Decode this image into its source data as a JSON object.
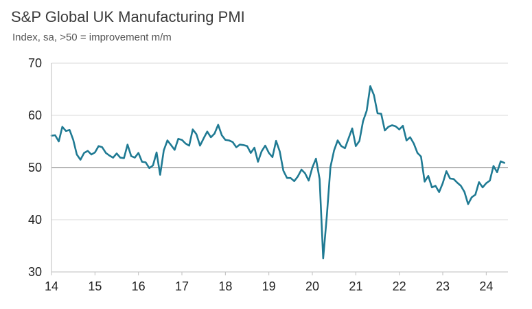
{
  "chart_data": {
    "type": "line",
    "title": "S&P Global UK Manufacturing PMI",
    "subtitle": "Index, sa, >50 = improvement m/m",
    "xlabel": "",
    "ylabel": "",
    "ylim": [
      30,
      70
    ],
    "yticks": [
      30,
      40,
      50,
      60,
      70
    ],
    "xlim": [
      2014.0,
      2024.5
    ],
    "xticks": [
      {
        "x": 2014,
        "label": "14"
      },
      {
        "x": 2015,
        "label": "15"
      },
      {
        "x": 2016,
        "label": "16"
      },
      {
        "x": 2017,
        "label": "17"
      },
      {
        "x": 2018,
        "label": "18"
      },
      {
        "x": 2019,
        "label": "19"
      },
      {
        "x": 2020,
        "label": "20"
      },
      {
        "x": 2021,
        "label": "21"
      },
      {
        "x": 2022,
        "label": "22"
      },
      {
        "x": 2023,
        "label": "23"
      },
      {
        "x": 2024,
        "label": "24"
      }
    ],
    "reference_line": 50,
    "grid": "horizontal",
    "line_color": "#1f7a93",
    "series": [
      {
        "start": "2014-01",
        "values": [
          56.1,
          56.2,
          55.0,
          57.8,
          57.0,
          57.2,
          55.3,
          52.5,
          51.5,
          52.8,
          53.2,
          52.5,
          52.9,
          54.1,
          53.9,
          52.8,
          52.3,
          51.9,
          52.7,
          51.9,
          51.8,
          54.4,
          52.2,
          51.9,
          52.8,
          51.1,
          51.0,
          49.9,
          50.4,
          52.9,
          48.6,
          53.3,
          55.2,
          54.3,
          53.4,
          55.5,
          55.3,
          54.6,
          54.2,
          57.3,
          56.4,
          54.2,
          55.6,
          56.9,
          55.8,
          56.5,
          58.2,
          56.2,
          55.3,
          55.2,
          54.9,
          53.9,
          54.4,
          54.3,
          54.1,
          52.8,
          53.8,
          51.1,
          53.1,
          54.2,
          52.8,
          52.0,
          55.1,
          53.1,
          49.4,
          48.0,
          48.0,
          47.4,
          48.3,
          49.6,
          48.9,
          47.5,
          50.0,
          51.7,
          47.8,
          32.6,
          40.7,
          50.1,
          53.3,
          55.2,
          54.1,
          53.7,
          55.6,
          57.5,
          54.1,
          55.1,
          58.9,
          60.9,
          65.6,
          63.9,
          60.4,
          60.3,
          57.1,
          57.8,
          58.1,
          57.9,
          57.3,
          58.0,
          55.2,
          55.8,
          54.6,
          52.8,
          52.1,
          47.3,
          48.4,
          46.2,
          46.5,
          45.3,
          47.0,
          49.3,
          47.9,
          47.8,
          47.1,
          46.5,
          45.3,
          43.0,
          44.3,
          44.8,
          47.2,
          46.2,
          47.0,
          47.5,
          50.3,
          49.1,
          51.2,
          50.9
        ]
      }
    ]
  }
}
